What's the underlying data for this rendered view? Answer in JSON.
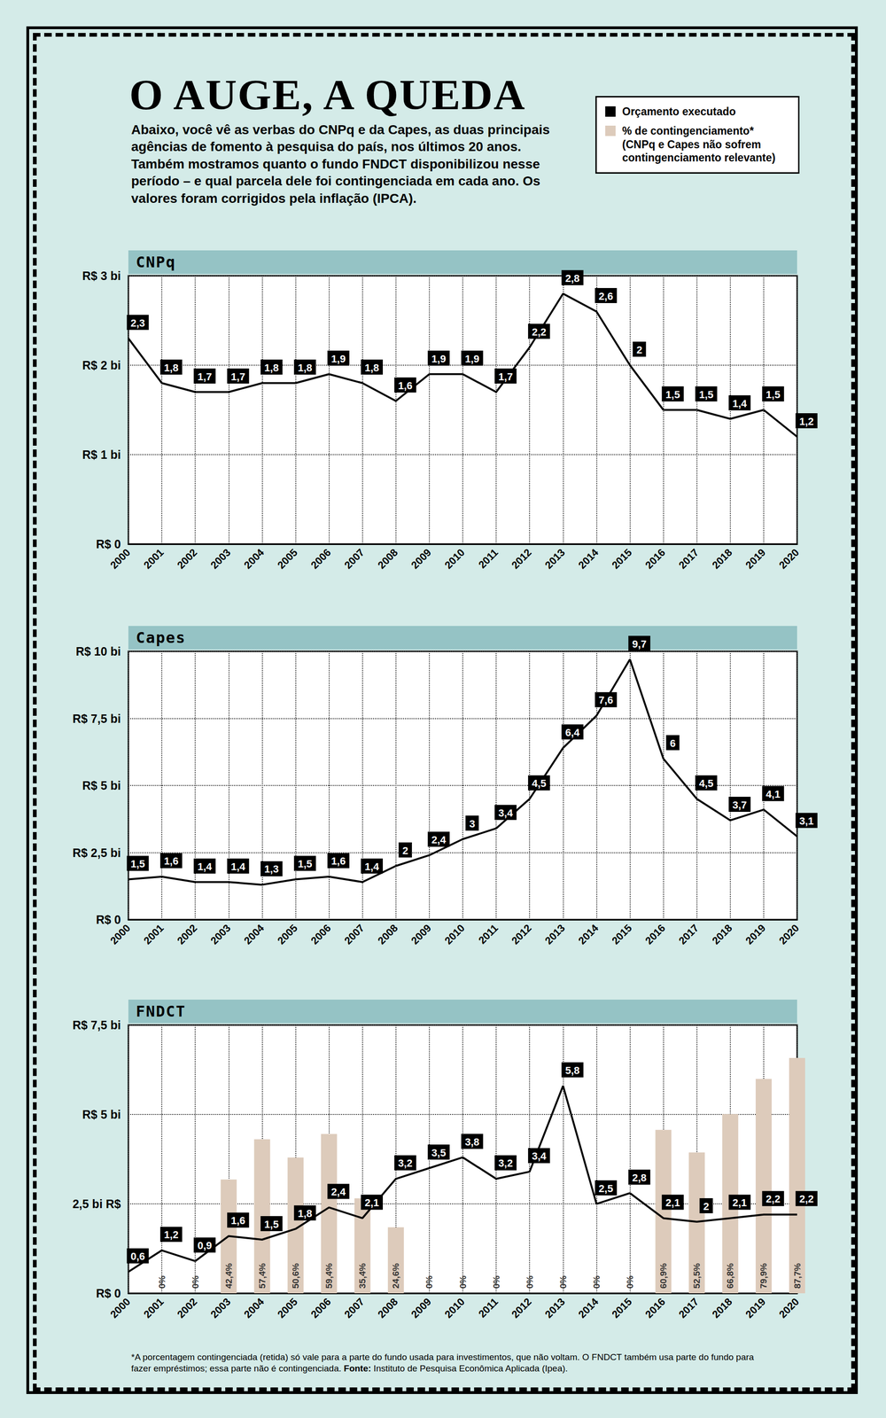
{
  "header": {
    "title": "O AUGE, A QUEDA",
    "subtitle": "Abaixo, você vê as verbas do CNPq e da Capes, as duas principais agências de fomento à pesquisa do país, nos últimos 20 anos. Também mostramos quanto o fundo FNDCT disponibilizou nesse período – e qual parcela dele foi contingenciada em cada ano. Os valores foram corrigidos pela inflação (IPCA)."
  },
  "legend_note": "(CNPq e Capes não sofrem contingenciamento relevante)",
  "chart_data": [
    {
      "type": "line",
      "title": "CNPq",
      "categories": [
        "2000",
        "2001",
        "2002",
        "2003",
        "2004",
        "2005",
        "2006",
        "2007",
        "2008",
        "2009",
        "2010",
        "2011",
        "2012",
        "2013",
        "2014",
        "2015",
        "2016",
        "2017",
        "2018",
        "2019",
        "2020"
      ],
      "series": [
        {
          "name": "Orçamento executado",
          "color": "#000000",
          "values": [
            2.3,
            1.8,
            1.7,
            1.7,
            1.8,
            1.8,
            1.9,
            1.8,
            1.6,
            1.9,
            1.9,
            1.7,
            2.2,
            2.8,
            2.6,
            2,
            1.5,
            1.5,
            1.4,
            1.5,
            1.2
          ],
          "value_labels": [
            "2,3",
            "1,8",
            "1,7",
            "1,7",
            "1,8",
            "1,8",
            "1,9",
            "1,8",
            "1,6",
            "1,9",
            "1,9",
            "1,7",
            "2,2",
            "2,8",
            "2,6",
            "2",
            "1,5",
            "1,5",
            "1,4",
            "1,5",
            "1,2"
          ]
        }
      ],
      "ylim": [
        0,
        3
      ],
      "yticks": [
        {
          "value": 0,
          "label": "R$ 0"
        },
        {
          "value": 1,
          "label": "R$ 1 bi"
        },
        {
          "value": 2,
          "label": "R$ 2 bi"
        },
        {
          "value": 3,
          "label": "R$ 3 bi"
        }
      ],
      "grid": true,
      "data_labels": true
    },
    {
      "type": "line",
      "title": "Capes",
      "categories": [
        "2000",
        "2001",
        "2002",
        "2003",
        "2004",
        "2005",
        "2006",
        "2007",
        "2008",
        "2009",
        "2010",
        "2011",
        "2012",
        "2013",
        "2014",
        "2015",
        "2016",
        "2017",
        "2018",
        "2019",
        "2020"
      ],
      "series": [
        {
          "name": "Orçamento executado",
          "color": "#000000",
          "values": [
            1.5,
            1.6,
            1.4,
            1.4,
            1.3,
            1.5,
            1.6,
            1.4,
            2,
            2.4,
            3,
            3.4,
            4.5,
            6.4,
            7.6,
            9.7,
            6,
            4.5,
            3.7,
            4.1,
            3.1
          ],
          "value_labels": [
            "1,5",
            "1,6",
            "1,4",
            "1,4",
            "1,3",
            "1,5",
            "1,6",
            "1,4",
            "2",
            "2,4",
            "3",
            "3,4",
            "4,5",
            "6,4",
            "7,6",
            "9,7",
            "6",
            "4,5",
            "3,7",
            "4,1",
            "3,1"
          ]
        }
      ],
      "ylim": [
        0,
        10
      ],
      "yticks": [
        {
          "value": 0,
          "label": "R$ 0"
        },
        {
          "value": 2.5,
          "label": "R$ 2,5 bi"
        },
        {
          "value": 5,
          "label": "R$ 5 bi"
        },
        {
          "value": 7.5,
          "label": "R$ 7,5 bi"
        },
        {
          "value": 10,
          "label": "R$ 10 bi"
        }
      ],
      "grid": true,
      "data_labels": true
    },
    {
      "type": "line",
      "title": "FNDCT",
      "categories": [
        "2000",
        "2001",
        "2002",
        "2003",
        "2004",
        "2005",
        "2006",
        "2007",
        "2008",
        "2009",
        "2010",
        "2011",
        "2012",
        "2013",
        "2014",
        "2015",
        "2016",
        "2017",
        "2018",
        "2019",
        "2020"
      ],
      "series": [
        {
          "name": "% de contingenciamento*",
          "type": "bar",
          "axis": "y2",
          "color": "#ddcbbb",
          "values": [
            null,
            0,
            0,
            42.4,
            57.4,
            50.6,
            59.4,
            35.4,
            24.6,
            0,
            0,
            0,
            0,
            0,
            0,
            0,
            60.9,
            52.5,
            66.8,
            79.9,
            87.7
          ],
          "value_labels": [
            null,
            "0%",
            "0%",
            "42,4%",
            "57,4%",
            "50,6%",
            "59,4%",
            "35,4%",
            "24,6%",
            "0%",
            "0%",
            "0%",
            "0%",
            "0%",
            "0%",
            "0%",
            "60,9%",
            "52,5%",
            "66,8%",
            "79,9%",
            "87,7%"
          ]
        },
        {
          "name": "Orçamento executado",
          "type": "line",
          "color": "#000000",
          "values": [
            0.6,
            1.2,
            0.9,
            1.6,
            1.5,
            1.8,
            2.4,
            2.1,
            3.2,
            3.5,
            3.8,
            3.2,
            3.4,
            5.8,
            2.5,
            2.8,
            2.1,
            2,
            2.1,
            2.2,
            2.2
          ],
          "value_labels": [
            "0,6",
            "1,2",
            "0,9",
            "1,6",
            "1,5",
            "1,8",
            "2,4",
            "2,1",
            "3,2",
            "3,5",
            "3,8",
            "3,2",
            "3,4",
            "5,8",
            "2,5",
            "2,8",
            "2,1",
            "2",
            "2,1",
            "2,2",
            "2,2"
          ]
        }
      ],
      "ylim": [
        0,
        7.5
      ],
      "yticks": [
        {
          "value": 0,
          "label": "R$ 0"
        },
        {
          "value": 2.5,
          "label": "2,5 bi R$"
        },
        {
          "value": 5,
          "label": "R$ 5 bi"
        },
        {
          "value": 7.5,
          "label": "R$ 7,5 bi"
        }
      ],
      "y2lim": [
        0,
        100
      ],
      "grid": true,
      "data_labels": true
    }
  ],
  "footnote": {
    "note": "*A porcentagem contingenciada (retida) só vale para a parte do fundo usada para investimentos, que não voltam. O FNDCT também usa parte do fundo para fazer empréstimos; essa parte não é contingenciada.",
    "source_label": "Fonte:",
    "source": "Instituto de Pesquisa Econômica Aplicada (Ipea)."
  }
}
